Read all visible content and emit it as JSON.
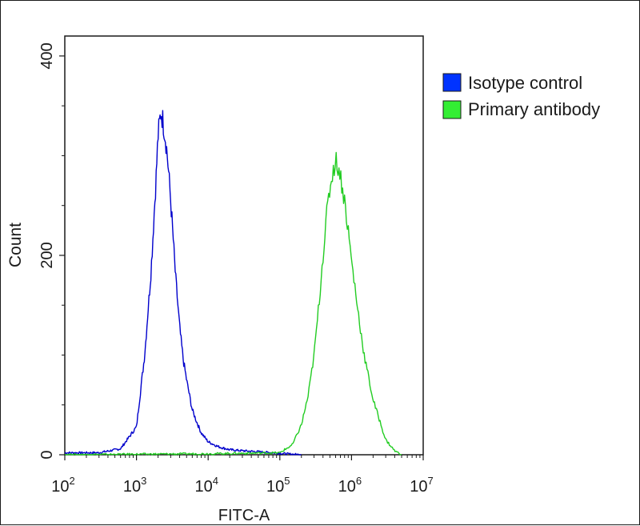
{
  "chart_data": {
    "type": "line",
    "xlabel": "FITC-A",
    "ylabel": "Count",
    "x_scale": "log",
    "xlim": [
      100,
      10000000
    ],
    "ylim": [
      0,
      420
    ],
    "x_ticks": [
      {
        "value": 100,
        "base": "10",
        "exp": "2"
      },
      {
        "value": 1000,
        "base": "10",
        "exp": "3"
      },
      {
        "value": 10000,
        "base": "10",
        "exp": "4"
      },
      {
        "value": 100000,
        "base": "10",
        "exp": "5"
      },
      {
        "value": 1000000,
        "base": "10",
        "exp": "6"
      },
      {
        "value": 10000000,
        "base": "10",
        "exp": "7"
      }
    ],
    "y_ticks": [
      {
        "value": 0,
        "label": "0"
      },
      {
        "value": 200,
        "label": "200"
      },
      {
        "value": 400,
        "label": "400"
      }
    ],
    "grid": false,
    "legend_position": "right",
    "series": [
      {
        "name": "Isotype control",
        "color": "#0000cc",
        "legend_color": "#0033ff",
        "x": [
          100,
          300,
          600,
          1000,
          1300,
          1600,
          1900,
          2000,
          2200,
          2400,
          2600,
          2800,
          3100,
          3500,
          4000,
          4500,
          5000,
          6000,
          7000,
          8000,
          10000,
          14000,
          20000,
          30000,
          50000,
          80000,
          120000,
          200000
        ],
        "y": [
          2,
          2,
          6,
          28,
          100,
          185,
          285,
          320,
          345,
          330,
          312,
          285,
          240,
          180,
          128,
          95,
          75,
          45,
          32,
          22,
          13,
          8,
          5,
          4,
          3,
          2,
          1,
          0
        ]
      },
      {
        "name": "Primary antibody",
        "color": "#22cc22",
        "legend_color": "#33ee33",
        "x": [
          100,
          10000,
          100000,
          150000,
          200000,
          250000,
          300000,
          350000,
          400000,
          450000,
          500000,
          550000,
          600000,
          650000,
          700000,
          800000,
          900000,
          1000000,
          1200000,
          1500000,
          2000000,
          3000000,
          4000000,
          5000000
        ],
        "y": [
          0,
          1,
          2,
          10,
          30,
          60,
          100,
          150,
          200,
          240,
          268,
          285,
          295,
          290,
          280,
          255,
          225,
          195,
          150,
          100,
          55,
          15,
          4,
          0
        ]
      }
    ]
  }
}
